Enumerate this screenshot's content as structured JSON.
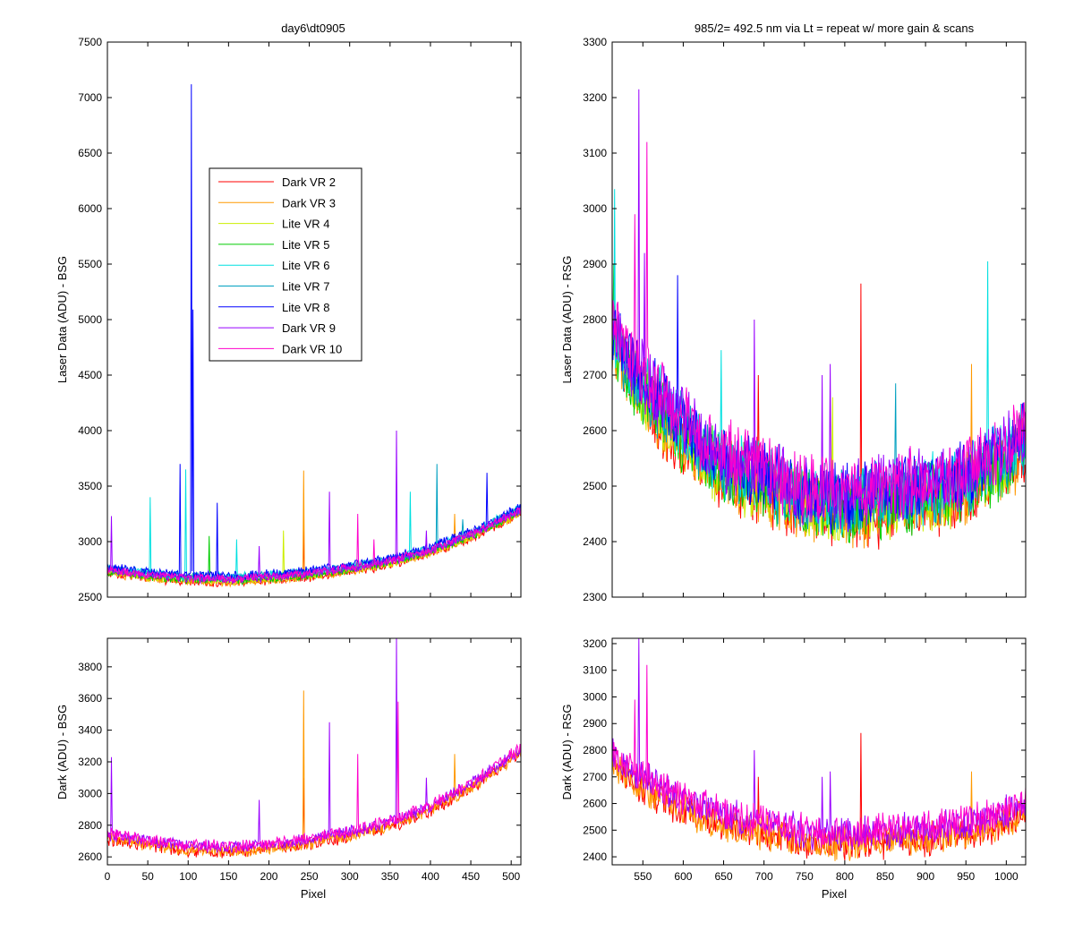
{
  "figure": {
    "background": "#ffffff",
    "trace_colors": [
      "#ff0000",
      "#ff9900",
      "#ccee00",
      "#00cc00",
      "#00e0e0",
      "#00a0c0",
      "#0000ff",
      "#9900ff",
      "#ff00cc"
    ]
  },
  "chart_data": [
    {
      "type": "line",
      "title": "day6\\dt0905",
      "xlabel": "",
      "ylabel": "Laser Data (ADU) - BSG",
      "xlim": [
        0,
        512
      ],
      "ylim": [
        2500,
        7500
      ],
      "xticks": [
        0,
        50,
        100,
        150,
        200,
        250,
        300,
        350,
        400,
        450,
        500
      ],
      "xticklabels_shown": false,
      "yticks": [
        2500,
        3000,
        3500,
        4000,
        4500,
        5000,
        5500,
        6000,
        6500,
        7000,
        7500
      ],
      "legend": {
        "placement": "upper-left-inside",
        "entries": [
          "Dark VR 2",
          "Dark VR 3",
          "Lite VR 4",
          "Lite VR 5",
          "Lite VR 6",
          "Lite VR 7",
          "Lite VR 8",
          "Dark VR 9",
          "Dark VR 10"
        ]
      },
      "grid": false,
      "baseline": {
        "x": [
          0,
          50,
          100,
          150,
          200,
          250,
          300,
          350,
          400,
          450,
          512
        ],
        "y": [
          2740,
          2700,
          2670,
          2660,
          2680,
          2710,
          2760,
          2820,
          2920,
          3060,
          3280
        ]
      },
      "noise_amplitude": 35,
      "series": [
        {
          "name": "Dark VR 2",
          "offset": -30,
          "spikes": [
            {
              "x": 243,
              "y": 3100
            }
          ]
        },
        {
          "name": "Dark VR 3",
          "offset": -25,
          "spikes": [
            {
              "x": 243,
              "y": 3640
            },
            {
              "x": 430,
              "y": 3250
            }
          ]
        },
        {
          "name": "Lite VR 4",
          "offset": -15,
          "spikes": [
            {
              "x": 218,
              "y": 3100
            }
          ]
        },
        {
          "name": "Lite VR 5",
          "offset": -10,
          "spikes": [
            {
              "x": 126,
              "y": 3050
            }
          ]
        },
        {
          "name": "Lite VR 6",
          "offset": 20,
          "spikes": [
            {
              "x": 53,
              "y": 3400
            },
            {
              "x": 97,
              "y": 3650
            },
            {
              "x": 160,
              "y": 3020
            },
            {
              "x": 375,
              "y": 3450
            }
          ]
        },
        {
          "name": "Lite VR 7",
          "offset": 15,
          "spikes": [
            {
              "x": 408,
              "y": 3700
            },
            {
              "x": 440,
              "y": 3200
            }
          ]
        },
        {
          "name": "Lite VR 8",
          "offset": 30,
          "spikes": [
            {
              "x": 90,
              "y": 3700
            },
            {
              "x": 104,
              "y": 7120
            },
            {
              "x": 106,
              "y": 5090
            },
            {
              "x": 136,
              "y": 3350
            },
            {
              "x": 470,
              "y": 3620
            }
          ]
        },
        {
          "name": "Dark VR 9",
          "offset": 0,
          "spikes": [
            {
              "x": 5,
              "y": 3230
            },
            {
              "x": 188,
              "y": 2960
            },
            {
              "x": 275,
              "y": 3450
            },
            {
              "x": 358,
              "y": 4000
            },
            {
              "x": 395,
              "y": 3100
            }
          ]
        },
        {
          "name": "Dark VR 10",
          "offset": 5,
          "spikes": [
            {
              "x": 310,
              "y": 3250
            },
            {
              "x": 330,
              "y": 3020
            }
          ]
        }
      ]
    },
    {
      "type": "line",
      "title": "985/2= 492.5 nm via Lt = repeat w/ more gain & scans",
      "xlabel": "",
      "ylabel": "Laser Data (ADU) - RSG",
      "xlim": [
        512,
        1024
      ],
      "ylim": [
        2300,
        3300
      ],
      "xticks": [
        550,
        600,
        650,
        700,
        750,
        800,
        850,
        900,
        950,
        1000
      ],
      "xticklabels_shown": false,
      "yticks": [
        2300,
        2400,
        2500,
        2600,
        2700,
        2800,
        2900,
        3000,
        3100,
        3200,
        3300
      ],
      "grid": false,
      "baseline": {
        "x": [
          512,
          540,
          570,
          600,
          650,
          700,
          750,
          800,
          850,
          900,
          950,
          1000,
          1024
        ],
        "y": [
          2775,
          2700,
          2650,
          2600,
          2540,
          2510,
          2480,
          2470,
          2480,
          2490,
          2510,
          2550,
          2590
        ]
      },
      "noise_amplitude": 55,
      "series": [
        {
          "name": "Dark VR 2",
          "offset": -25,
          "spikes": [
            {
              "x": 820,
              "y": 2865
            },
            {
              "x": 693,
              "y": 2700
            }
          ]
        },
        {
          "name": "Dark VR 3",
          "offset": -20,
          "spikes": [
            {
              "x": 957,
              "y": 2720
            }
          ]
        },
        {
          "name": "Lite VR 4",
          "offset": -15,
          "spikes": [
            {
              "x": 785,
              "y": 2660
            }
          ]
        },
        {
          "name": "Lite VR 5",
          "offset": -10,
          "spikes": [
            {
              "x": 514,
              "y": 2900
            }
          ]
        },
        {
          "name": "Lite VR 6",
          "offset": 5,
          "spikes": [
            {
              "x": 515,
              "y": 3035
            },
            {
              "x": 977,
              "y": 2905
            },
            {
              "x": 647,
              "y": 2745
            }
          ]
        },
        {
          "name": "Lite VR 7",
          "offset": 0,
          "spikes": [
            {
              "x": 863,
              "y": 2685
            }
          ]
        },
        {
          "name": "Lite VR 8",
          "offset": 10,
          "spikes": [
            {
              "x": 593,
              "y": 2880
            }
          ]
        },
        {
          "name": "Dark VR 9",
          "offset": 15,
          "spikes": [
            {
              "x": 545,
              "y": 3215
            },
            {
              "x": 552,
              "y": 2920
            },
            {
              "x": 688,
              "y": 2800
            },
            {
              "x": 772,
              "y": 2700
            },
            {
              "x": 782,
              "y": 2720
            }
          ]
        },
        {
          "name": "Dark VR 10",
          "offset": 20,
          "spikes": [
            {
              "x": 555,
              "y": 3120
            },
            {
              "x": 540,
              "y": 2990
            }
          ]
        }
      ]
    },
    {
      "type": "line",
      "title": "",
      "xlabel": "Pixel",
      "ylabel": "Dark (ADU) - BSG",
      "xlim": [
        0,
        512
      ],
      "ylim": [
        2550,
        3980
      ],
      "xticks": [
        0,
        50,
        100,
        150,
        200,
        250,
        300,
        350,
        400,
        450,
        500
      ],
      "xticklabels_shown": true,
      "yticks": [
        2600,
        2800,
        3000,
        3200,
        3400,
        3600,
        3800
      ],
      "grid": false,
      "baseline": {
        "x": [
          0,
          50,
          100,
          150,
          200,
          250,
          300,
          350,
          400,
          450,
          512
        ],
        "y": [
          2740,
          2700,
          2670,
          2660,
          2680,
          2710,
          2760,
          2820,
          2920,
          3060,
          3280
        ]
      },
      "noise_amplitude": 35,
      "series": [
        {
          "name": "Dark VR 2",
          "offset": -30,
          "spikes": [
            {
              "x": 243,
              "y": 3100
            }
          ]
        },
        {
          "name": "Dark VR 3",
          "offset": -25,
          "spikes": [
            {
              "x": 243,
              "y": 3650
            },
            {
              "x": 430,
              "y": 3250
            }
          ]
        },
        {
          "name": "Dark VR 9",
          "offset": 0,
          "spikes": [
            {
              "x": 5,
              "y": 3230
            },
            {
              "x": 188,
              "y": 2960
            },
            {
              "x": 275,
              "y": 3450
            },
            {
              "x": 358,
              "y": 3980
            },
            {
              "x": 395,
              "y": 3100
            }
          ]
        },
        {
          "name": "Dark VR 10",
          "offset": 5,
          "spikes": [
            {
              "x": 310,
              "y": 3250
            },
            {
              "x": 360,
              "y": 3580
            }
          ]
        }
      ]
    },
    {
      "type": "line",
      "title": "",
      "xlabel": "Pixel",
      "ylabel": "Dark (ADU) - RSG",
      "xlim": [
        512,
        1024
      ],
      "ylim": [
        2370,
        3220
      ],
      "xticks": [
        550,
        600,
        650,
        700,
        750,
        800,
        850,
        900,
        950,
        1000
      ],
      "xticklabels_shown": true,
      "yticks": [
        2400,
        2500,
        2600,
        2700,
        2800,
        2900,
        3000,
        3100,
        3200
      ],
      "grid": false,
      "baseline": {
        "x": [
          512,
          540,
          570,
          600,
          650,
          700,
          750,
          800,
          850,
          900,
          950,
          1000,
          1024
        ],
        "y": [
          2775,
          2700,
          2650,
          2600,
          2540,
          2510,
          2480,
          2470,
          2480,
          2490,
          2510,
          2550,
          2590
        ]
      },
      "noise_amplitude": 55,
      "series": [
        {
          "name": "Dark VR 2",
          "offset": -25,
          "spikes": [
            {
              "x": 820,
              "y": 2865
            },
            {
              "x": 693,
              "y": 2700
            }
          ]
        },
        {
          "name": "Dark VR 3",
          "offset": -20,
          "spikes": [
            {
              "x": 957,
              "y": 2720
            }
          ]
        },
        {
          "name": "Dark VR 9",
          "offset": 15,
          "spikes": [
            {
              "x": 545,
              "y": 3220
            },
            {
              "x": 688,
              "y": 2800
            },
            {
              "x": 772,
              "y": 2700
            },
            {
              "x": 782,
              "y": 2720
            }
          ]
        },
        {
          "name": "Dark VR 10",
          "offset": 20,
          "spikes": [
            {
              "x": 555,
              "y": 3120
            },
            {
              "x": 540,
              "y": 2990
            }
          ]
        }
      ]
    }
  ]
}
